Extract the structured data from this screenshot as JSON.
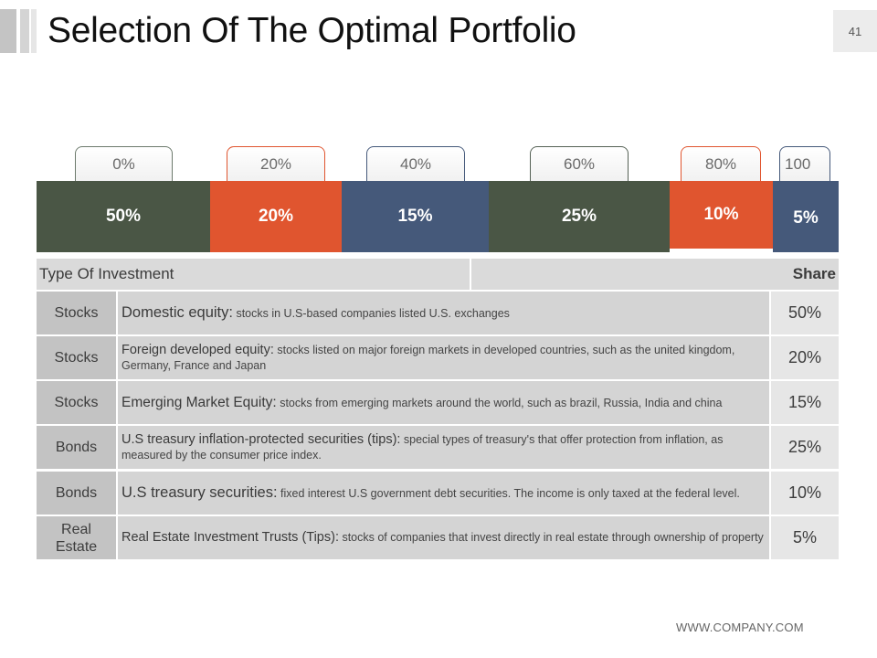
{
  "header": {
    "title": "Selection Of The Optimal Portfolio",
    "page_number": "41"
  },
  "scale": {
    "ticks": [
      {
        "label": "0%",
        "color": "#6c7a6c"
      },
      {
        "label": "20%",
        "color": "#e0552f"
      },
      {
        "label": "40%",
        "color": "#45597a"
      },
      {
        "label": "60%",
        "color": "#556155"
      },
      {
        "label": "80%",
        "color": "#e0552f"
      },
      {
        "label": "100",
        "color": "#45597a"
      }
    ]
  },
  "bar": {
    "segments": [
      {
        "label": "50%",
        "value": 50,
        "color": "#4a5645"
      },
      {
        "label": "20%",
        "value": 20,
        "color": "#e0552f"
      },
      {
        "label": "15%",
        "value": 15,
        "color": "#45597a"
      },
      {
        "label": "25%",
        "value": 25,
        "color": "#4a5645"
      },
      {
        "label": "10%",
        "value": 10,
        "color": "#e0552f"
      },
      {
        "label": "5%",
        "value": 5,
        "color": "#45597a"
      }
    ]
  },
  "table": {
    "headers": {
      "type": "Type Of Investment",
      "share": "Share"
    },
    "rows": [
      {
        "type": "Stocks",
        "title": "Domestic equity:",
        "desc": " stocks in U.S-based companies listed U.S. exchanges",
        "share": "50%"
      },
      {
        "type": "Stocks",
        "title": "Foreign developed equity:",
        "desc": " stocks listed on major foreign markets in developed  countries, such as the united kingdom, Germany, France and Japan",
        "share": "20%"
      },
      {
        "type": "Stocks",
        "title": "Emerging Market Equity:",
        "desc": " stocks from emerging markets around the world, such as brazil, Russia, India and china",
        "share": "15%"
      },
      {
        "type": "Bonds",
        "title": "U.S treasury inflation-protected securities (tips):",
        "desc": " special types of treasury's that offer protection from inflation, as measured by the consumer price index.",
        "share": "25%"
      },
      {
        "type": "Bonds",
        "title": "U.S treasury securities:",
        "desc": " fixed interest U.S government debt securities. The income is only taxed at the federal level.",
        "share": "10%"
      },
      {
        "type": "Real Estate",
        "title": "Real Estate Investment Trusts (Tips):",
        "desc": " stocks of companies that invest directly in real estate through ownership of property",
        "share": "5%"
      }
    ]
  },
  "footer": {
    "website": "WWW.COMPANY.COM"
  }
}
